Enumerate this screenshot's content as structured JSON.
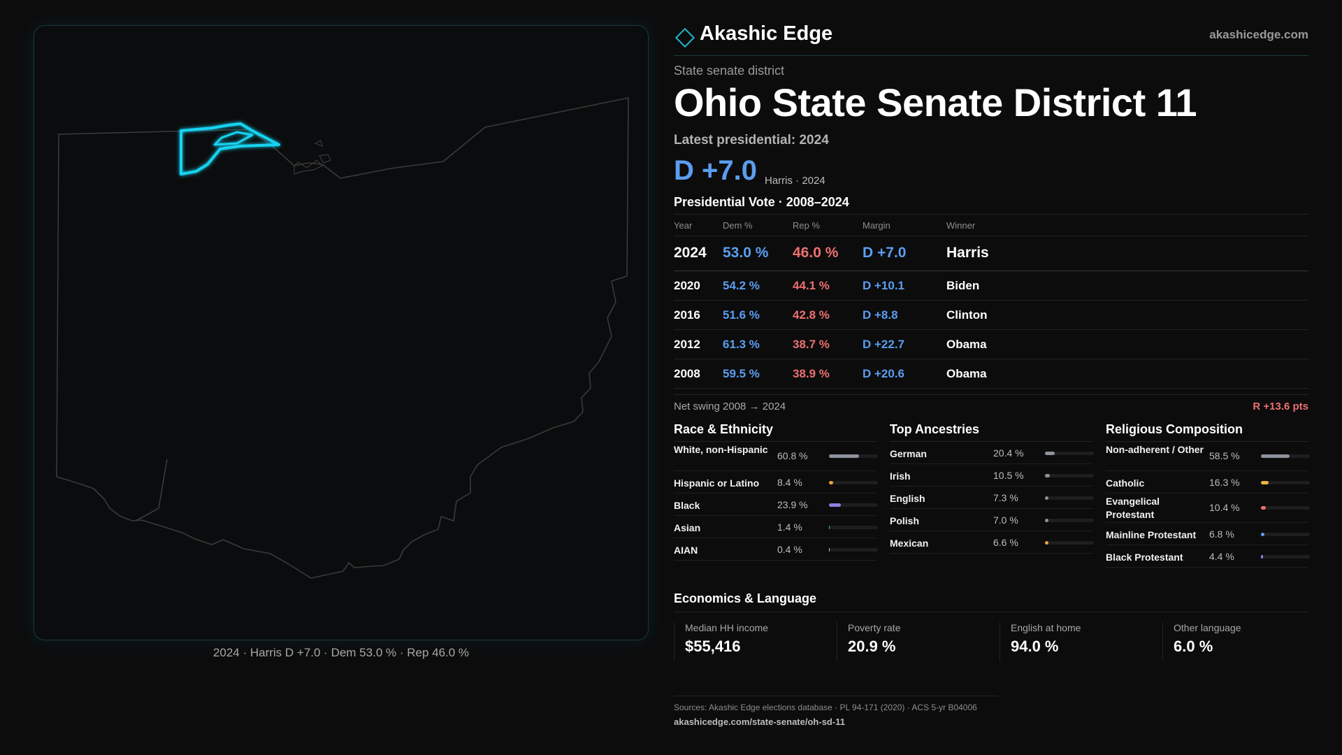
{
  "brand": {
    "name": "Akashic Edge",
    "url": "akashicedge.com",
    "accent": "#1fb8cf"
  },
  "header": {
    "kicker": "State senate district",
    "title": "Ohio State Senate District 11",
    "latest": "Latest presidential: 2024",
    "margin": "D +7.0",
    "margin_sub": "Harris · 2024"
  },
  "map": {
    "caption": "2024 · Harris D +7.0 · Dem 53.0 % · Rep 46.0 %",
    "highlight_color": "#19d3f0",
    "outline_color": "#3a3a3a"
  },
  "pres_vote": {
    "title": "Presidential Vote · 2008–2024",
    "headers": {
      "year": "Year",
      "dem": "Dem %",
      "rep": "Rep %",
      "margin": "Margin",
      "winner": "Winner"
    },
    "rows": [
      {
        "year": "2024",
        "dem": "53.0 %",
        "rep": "46.0 %",
        "margin": "D +7.0",
        "winner": "Harris"
      },
      {
        "year": "2020",
        "dem": "54.2 %",
        "rep": "44.1 %",
        "margin": "D +10.1",
        "winner": "Biden"
      },
      {
        "year": "2016",
        "dem": "51.6 %",
        "rep": "42.8 %",
        "margin": "D +8.8",
        "winner": "Clinton"
      },
      {
        "year": "2012",
        "dem": "61.3 %",
        "rep": "38.7 %",
        "margin": "D +22.7",
        "winner": "Obama"
      },
      {
        "year": "2008",
        "dem": "59.5 %",
        "rep": "38.9 %",
        "margin": "D +20.6",
        "winner": "Obama"
      }
    ],
    "colors": {
      "dem": "#5b9ef0",
      "rep": "#ee6f6f"
    }
  },
  "swing": {
    "label": "Net swing 2008 → 2024",
    "value": "R +13.6 pts"
  },
  "race": {
    "title": "Race & Ethnicity",
    "items": [
      {
        "label": "White, non-Hispanic",
        "value": "60.8 %",
        "pct": 60.8,
        "color": "#8d929b"
      },
      {
        "label": "Hispanic or Latino",
        "value": "8.4 %",
        "pct": 8.4,
        "color": "#e8a33a"
      },
      {
        "label": "Black",
        "value": "23.9 %",
        "pct": 23.9,
        "color": "#8f7fe0"
      },
      {
        "label": "Asian",
        "value": "1.4 %",
        "pct": 1.4,
        "color": "#3fbf8f"
      },
      {
        "label": "AIAN",
        "value": "0.4 %",
        "pct": 0.4,
        "color": "#c0c0c0"
      }
    ]
  },
  "ancestry": {
    "title": "Top Ancestries",
    "items": [
      {
        "label": "German",
        "value": "20.4 %",
        "pct": 20.4,
        "color": "#8d929b"
      },
      {
        "label": "Irish",
        "value": "10.5 %",
        "pct": 10.5,
        "color": "#8d929b"
      },
      {
        "label": "English",
        "value": "7.3 %",
        "pct": 7.3,
        "color": "#8d929b"
      },
      {
        "label": "Polish",
        "value": "7.0 %",
        "pct": 7.0,
        "color": "#8d929b"
      },
      {
        "label": "Mexican",
        "value": "6.6 %",
        "pct": 6.6,
        "color": "#e8a33a"
      }
    ]
  },
  "religion": {
    "title": "Religious Composition",
    "items": [
      {
        "label": "Non-adherent / Other",
        "value": "58.5 %",
        "pct": 58.5,
        "color": "#8d929b"
      },
      {
        "label": "Catholic",
        "value": "16.3 %",
        "pct": 16.3,
        "color": "#e8b53a"
      },
      {
        "label": "Evangelical Protestant",
        "value": "10.4 %",
        "pct": 10.4,
        "color": "#ee6f6f"
      },
      {
        "label": "Mainline Protestant",
        "value": "6.8 %",
        "pct": 6.8,
        "color": "#5b9ef0"
      },
      {
        "label": "Black Protestant",
        "value": "4.4 %",
        "pct": 4.4,
        "color": "#8f7fe0"
      }
    ]
  },
  "economics": {
    "title": "Economics & Language",
    "items": [
      {
        "label": "Median HH income",
        "value": "$55,416"
      },
      {
        "label": "Poverty rate",
        "value": "20.9 %"
      },
      {
        "label": "English at home",
        "value": "94.0 %"
      },
      {
        "label": "Other language",
        "value": "6.0 %"
      }
    ]
  },
  "sources": {
    "line": "Sources: Akashic Edge elections database · PL 94-171 (2020) · ACS 5-yr B04006",
    "url": "akashicedge.com/state-senate/oh-sd-11"
  }
}
